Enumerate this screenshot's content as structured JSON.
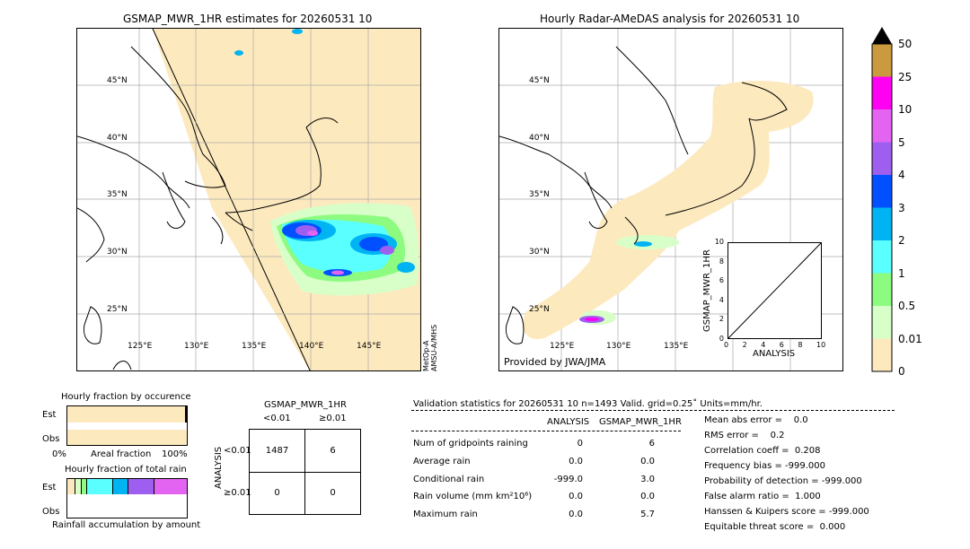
{
  "left_map": {
    "title": "GSMAP_MWR_1HR estimates for 20260531 10",
    "lat_labels": [
      "45°N",
      "40°N",
      "35°N",
      "30°N",
      "25°N"
    ],
    "lon_labels": [
      "125°E",
      "130°E",
      "135°E",
      "140°E",
      "145°E"
    ],
    "satellite_label": "MetOp-A\nAMSU-A/MHS"
  },
  "right_map": {
    "title": "Hourly Radar-AMeDAS analysis for 20260531 10",
    "lat_labels": [
      "45°N",
      "40°N",
      "35°N",
      "30°N",
      "25°N"
    ],
    "lon_labels": [
      "125°E",
      "130°E",
      "135°E"
    ],
    "credit": "Provided by JWA/JMA"
  },
  "inset": {
    "ylabel": "GSMAP_MWR_1HR",
    "xlabel": "ANALYSIS",
    "ticks": [
      "0",
      "2",
      "4",
      "6",
      "8",
      "10"
    ]
  },
  "colorbar": {
    "labels": [
      "50",
      "25",
      "10",
      "5",
      "4",
      "3",
      "2",
      "1",
      "0.5",
      "0.01",
      "0"
    ],
    "colors": [
      "#cc9a3e",
      "#ff00f2",
      "#e464f2",
      "#9e5ff0",
      "#0050ff",
      "#00b4f4",
      "#5affff",
      "#8cfb7f",
      "#d8ffc8",
      "#fde9be"
    ]
  },
  "occurrence": {
    "title": "Hourly fraction by occurence",
    "rows": [
      "Est",
      "Obs"
    ],
    "axis_left": "0%",
    "axis_mid": "Areal fraction",
    "axis_right": "100%"
  },
  "total_rain": {
    "title": "Hourly fraction of total rain",
    "rows": [
      "Est",
      "Obs"
    ],
    "footer": "Rainfall accumulation by amount"
  },
  "contingency": {
    "title": "GSMAP_MWR_1HR",
    "col_labels": [
      "<0.01",
      "≥0.01"
    ],
    "row_labels": [
      "<0.01",
      "≥0.01"
    ],
    "side_label": "ANALYSIS",
    "cells": [
      [
        "1487",
        "6"
      ],
      [
        "0",
        "0"
      ]
    ]
  },
  "validation": {
    "header": "Validation statistics for 20260531 10  n=1493 Valid. grid=0.25˚ Units=mm/hr.",
    "col_analysis": "ANALYSIS",
    "col_est": "GSMAP_MWR_1HR",
    "rows": [
      {
        "label": "Num of gridpoints raining",
        "analysis": "0",
        "est": "6"
      },
      {
        "label": "Average rain",
        "analysis": "0.0",
        "est": "0.0"
      },
      {
        "label": "Conditional rain",
        "analysis": "-999.0",
        "est": "3.0"
      },
      {
        "label": "Rain volume (mm km²10⁶)",
        "analysis": "0.0",
        "est": "0.0"
      },
      {
        "label": "Maximum rain",
        "analysis": "0.0",
        "est": "5.7"
      }
    ],
    "scores": [
      "Mean abs error =    0.0",
      "RMS error =    0.2",
      "Correlation coeff =  0.208",
      "Frequency bias = -999.000",
      "Probability of detection = -999.000",
      "False alarm ratio =  1.000",
      "Hanssen & Kuipers score = -999.000",
      "Equitable threat score =  0.000"
    ]
  },
  "chart_data": [
    {
      "type": "table",
      "title": "GSMAP_MWR_1HR",
      "columns": [
        "<0.01",
        "≥0.01"
      ],
      "rows": [
        "<0.01",
        "≥0.01"
      ],
      "values": [
        [
          1487,
          6
        ],
        [
          0,
          0
        ]
      ]
    },
    {
      "type": "bar",
      "title": "Hourly fraction by occurence",
      "categories": [
        "Est",
        "Obs"
      ],
      "values": [
        0.996,
        1.0
      ],
      "xlim": [
        0,
        1
      ]
    },
    {
      "type": "scatter",
      "xlabel": "ANALYSIS",
      "ylabel": "GSMAP_MWR_1HR",
      "xlim": [
        0,
        10
      ],
      "ylim": [
        0,
        10
      ]
    }
  ]
}
